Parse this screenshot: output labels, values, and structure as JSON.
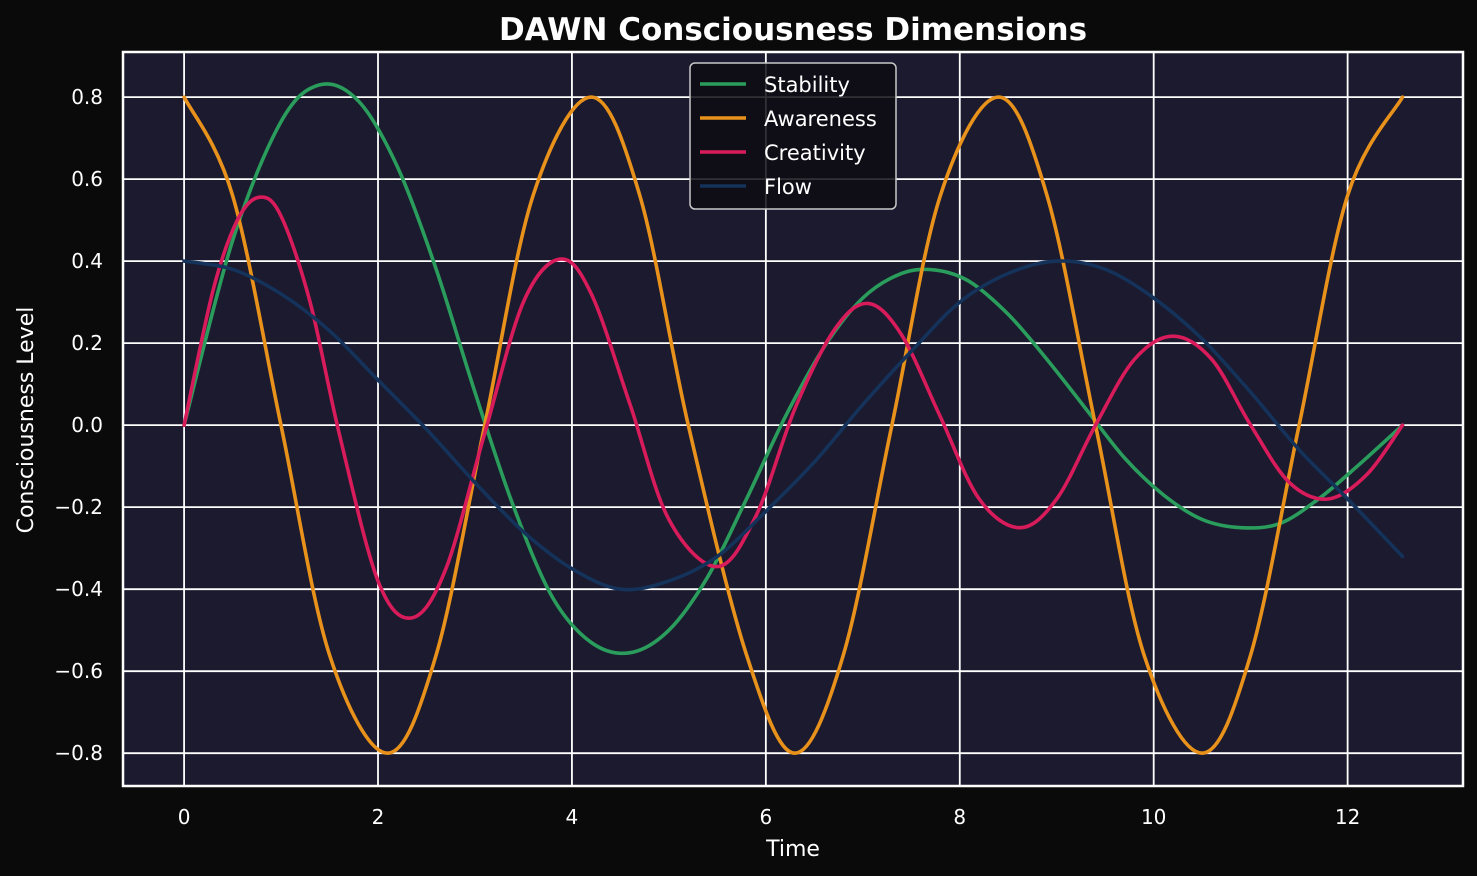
{
  "chart_data": {
    "type": "line",
    "title": "DAWN Consciousness Dimensions",
    "xlabel": "Time",
    "ylabel": "Consciousness Level",
    "xlim": [
      -0.63,
      13.19
    ],
    "ylim": [
      -0.88,
      0.91
    ],
    "xticks": [
      0,
      2,
      4,
      6,
      8,
      10,
      12
    ],
    "yticks": [
      -0.8,
      -0.6,
      -0.4,
      -0.2,
      0.0,
      0.2,
      0.4,
      0.6,
      0.8
    ],
    "ytick_labels": [
      "−0.8",
      "−0.6",
      "−0.4",
      "−0.2",
      "0.0",
      "0.2",
      "0.4",
      "0.6",
      "0.8"
    ],
    "xtick_labels": [
      "0",
      "2",
      "4",
      "6",
      "8",
      "10",
      "12"
    ],
    "grid": true,
    "legend_position": "top-center",
    "background": "#1b1a2e",
    "figure_background": "#0a0a0a",
    "x_range": [
      0,
      12.566
    ],
    "series": [
      {
        "name": "Stability",
        "color": "#2a9d5c",
        "x": [
          0,
          0.5,
          1.0,
          1.4,
          1.8,
          2.2,
          2.6,
          3.0,
          3.4,
          3.8,
          4.2,
          4.6,
          5.0,
          5.4,
          5.8,
          6.2,
          6.6,
          7.0,
          7.4,
          7.75,
          8.1,
          8.5,
          8.9,
          9.3,
          9.7,
          10.1,
          10.5,
          10.9,
          11.3,
          11.7,
          12.1,
          12.566
        ],
        "y": [
          0.0,
          0.45,
          0.74,
          0.83,
          0.79,
          0.63,
          0.38,
          0.08,
          -0.2,
          -0.42,
          -0.53,
          -0.555,
          -0.5,
          -0.37,
          -0.18,
          0.02,
          0.19,
          0.31,
          0.37,
          0.378,
          0.35,
          0.27,
          0.16,
          0.04,
          -0.08,
          -0.17,
          -0.23,
          -0.25,
          -0.24,
          -0.18,
          -0.1,
          0.0
        ]
      },
      {
        "name": "Awareness",
        "color": "#e8921c",
        "x": [
          0,
          0.5,
          1.0,
          1.5,
          2.1,
          2.6,
          3.1,
          3.6,
          4.2,
          4.7,
          5.2,
          5.8,
          6.3,
          6.8,
          7.3,
          7.8,
          8.4,
          8.9,
          9.4,
          9.9,
          10.5,
          11.0,
          11.5,
          12.0,
          12.566
        ],
        "y": [
          0.8,
          0.56,
          0.0,
          -0.56,
          -0.8,
          -0.56,
          0.0,
          0.56,
          0.8,
          0.56,
          0.0,
          -0.56,
          -0.8,
          -0.56,
          0.0,
          0.56,
          0.8,
          0.56,
          0.0,
          -0.56,
          -0.8,
          -0.56,
          0.0,
          0.56,
          0.8
        ]
      },
      {
        "name": "Creativity",
        "color": "#d81b5a",
        "x": [
          0,
          0.3,
          0.55,
          0.78,
          1.0,
          1.3,
          1.6,
          2.0,
          2.35,
          2.7,
          3.1,
          3.5,
          3.88,
          4.2,
          4.6,
          5.0,
          5.5,
          5.9,
          6.3,
          6.7,
          7.05,
          7.4,
          7.8,
          8.2,
          8.62,
          9.0,
          9.4,
          9.8,
          10.2,
          10.6,
          11.0,
          11.4,
          11.8,
          12.2,
          12.566
        ],
        "y": [
          0.0,
          0.33,
          0.5,
          0.556,
          0.51,
          0.3,
          -0.02,
          -0.38,
          -0.47,
          -0.35,
          -0.02,
          0.3,
          0.405,
          0.32,
          0.05,
          -0.23,
          -0.345,
          -0.22,
          0.04,
          0.23,
          0.297,
          0.22,
          0.02,
          -0.18,
          -0.25,
          -0.18,
          0.0,
          0.16,
          0.217,
          0.16,
          0.0,
          -0.14,
          -0.18,
          -0.12,
          0.0
        ]
      },
      {
        "name": "Flow",
        "color": "#14325a",
        "x": [
          0,
          0.5,
          1.0,
          1.5,
          2.0,
          2.5,
          3.0,
          3.5,
          4.0,
          4.5,
          5.0,
          5.5,
          6.0,
          6.5,
          7.0,
          7.5,
          8.0,
          8.5,
          9.0,
          9.5,
          10.0,
          10.5,
          11.0,
          11.5,
          12.0,
          12.566
        ],
        "y": [
          0.4,
          0.38,
          0.32,
          0.23,
          0.11,
          -0.01,
          -0.14,
          -0.26,
          -0.35,
          -0.4,
          -0.38,
          -0.32,
          -0.21,
          -0.09,
          0.05,
          0.18,
          0.3,
          0.37,
          0.4,
          0.38,
          0.31,
          0.21,
          0.08,
          -0.06,
          -0.18,
          -0.32
        ]
      }
    ]
  }
}
